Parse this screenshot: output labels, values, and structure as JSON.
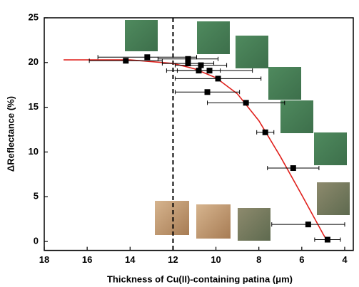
{
  "chart_data": {
    "type": "scatter",
    "x_label": "Thickness of Cu(II)-containing patina (μm)",
    "y_label": "ΔReflectance (%)",
    "xlim": [
      18,
      3.6
    ],
    "ylim": [
      -1,
      25
    ],
    "xticks": [
      18,
      16,
      14,
      12,
      10,
      8,
      6,
      4
    ],
    "yticks": [
      0,
      5,
      10,
      15,
      20,
      25
    ],
    "reference_x": 12,
    "series": [
      {
        "color": "#000000",
        "x": [
          14.2,
          13.2,
          11.3,
          11.3,
          10.7,
          10.8,
          10.3,
          9.9,
          10.4,
          8.6,
          7.7,
          6.4,
          5.7,
          4.8
        ],
        "values": [
          20.2,
          20.6,
          20.4,
          19.9,
          19.7,
          19.1,
          19.1,
          18.2,
          16.7,
          15.5,
          12.2,
          8.2,
          1.9,
          0.2
        ],
        "xerr": [
          1.7,
          2.3,
          1.4,
          1.2,
          1.2,
          1.0,
          2.0,
          2.0,
          1.5,
          1.8,
          0.4,
          1.2,
          1.7,
          0.6
        ]
      }
    ],
    "fit": {
      "color": "#e0201c",
      "x": [
        17.1,
        14,
        12,
        11,
        10,
        9,
        8,
        7,
        6,
        5,
        4.8
      ],
      "values": [
        20.3,
        20.3,
        19.9,
        19.3,
        18.3,
        16.5,
        13.5,
        9.5,
        5.2,
        0.8,
        0
      ]
    }
  }
}
